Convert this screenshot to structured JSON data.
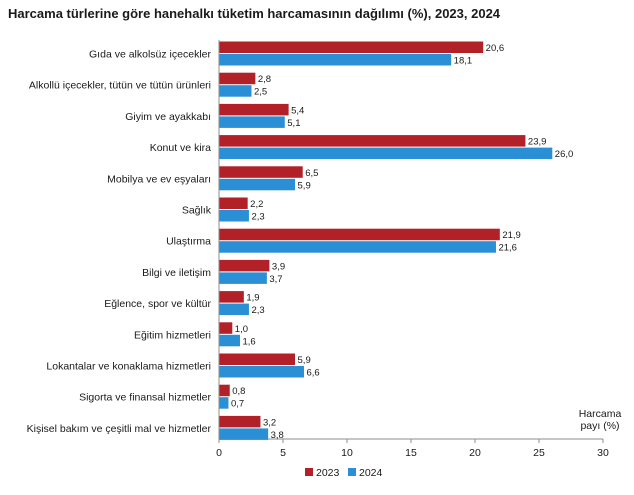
{
  "chart_data": {
    "type": "bar",
    "orientation": "horizontal",
    "title": "Harcama türlerine göre hanehalkı tüketim harcamasının dağılımı (%), 2023, 2024",
    "xlabel_line1": "Harcama",
    "xlabel_line2": "payı  (%)",
    "xlim": [
      0,
      30
    ],
    "xticks": [
      "0",
      "5",
      "10",
      "15",
      "20",
      "25",
      "30"
    ],
    "grid": false,
    "legend_position": "bottom",
    "categories": [
      "Gıda ve alkolsüz içecekler",
      "Alkollü içecekler, tütün ve tütün ürünleri",
      "Giyim ve ayakkabı",
      "Konut ve kira",
      "Mobilya ve ev eşyaları",
      "Sağlık",
      "Ulaştırma",
      "Bilgi ve iletişim",
      "Eğlence, spor ve kültür",
      "Eğitim hizmetleri",
      "Lokantalar ve konaklama hizmetleri",
      "Sigorta ve finansal hizmetler",
      "Kişisel bakım ve çeşitli mal ve hizmetler"
    ],
    "series": [
      {
        "name": "2023",
        "color": "#b22028",
        "values": [
          20.6,
          2.8,
          5.4,
          23.9,
          6.5,
          2.2,
          21.9,
          3.9,
          1.9,
          1.0,
          5.9,
          0.8,
          3.2
        ],
        "labels": [
          "20,6",
          "2,8",
          "5,4",
          "23,9",
          "6,5",
          "2,2",
          "21,9",
          "3,9",
          "1,9",
          "1,0",
          "5,9",
          "0,8",
          "3,2"
        ]
      },
      {
        "name": "2024",
        "color": "#2b8fd6",
        "values": [
          18.1,
          2.5,
          5.1,
          26.0,
          5.9,
          2.3,
          21.6,
          3.7,
          2.3,
          1.6,
          6.6,
          0.7,
          3.8
        ],
        "labels": [
          "18,1",
          "2,5",
          "5,1",
          "26,0",
          "5,9",
          "2,3",
          "21,6",
          "3,7",
          "2,3",
          "1,6",
          "6,6",
          "0,7",
          "3,8"
        ]
      }
    ]
  }
}
